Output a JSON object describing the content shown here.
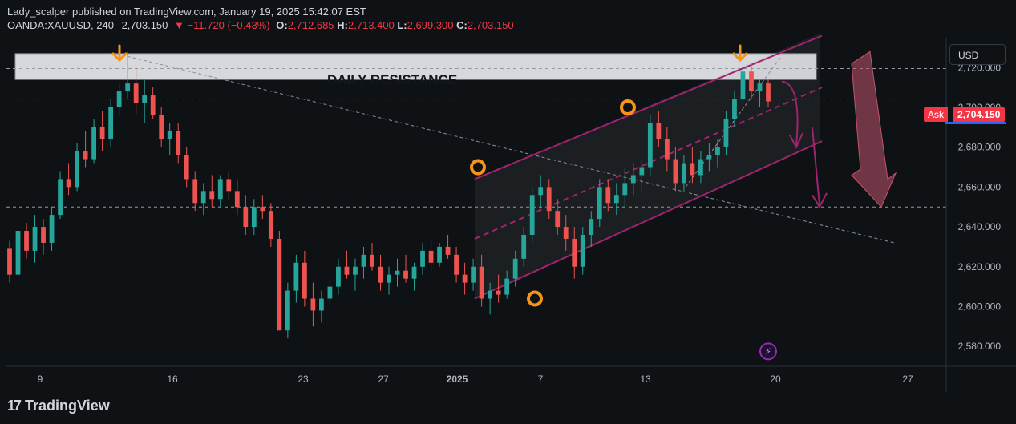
{
  "header": {
    "publisher_line": "Lady_scalper published on TradingView.com, January 19, 2025 15:42:07 EST",
    "symbol": "OANDA:XAUUSD, 240",
    "last": "2,703.150",
    "change": "▼ −11.720 (−0.43%)",
    "o_label": "O:",
    "o_val": "2,712.685",
    "h_label": "H:",
    "h_val": "2,713.400",
    "l_label": "L:",
    "l_val": "2,699.300",
    "c_label": "C:",
    "c_val": "2,703.150"
  },
  "currency_button": "USD",
  "ask": {
    "label": "Ask",
    "price": "2,704.150"
  },
  "annotation": {
    "resistance_label": "DAILY RESISTANCE"
  },
  "footer": {
    "brand": "TradingView",
    "logo_mark": "17"
  },
  "colors": {
    "background": "#0f1215",
    "up": "#26a69a",
    "down": "#ef5350",
    "channel": "#a1236e",
    "marker": "#f7931a",
    "ask": "#f23645"
  },
  "chart_data": {
    "type": "candlestick",
    "title": "",
    "ylim": [
      2570,
      2735
    ],
    "y_ticks": [
      2580,
      2600,
      2620,
      2640,
      2660,
      2680,
      2700,
      2720
    ],
    "y_tick_labels": [
      "2,580.000",
      "2,600.000",
      "2,620.000",
      "2,640.000",
      "2,660.000",
      "2,680.000",
      "2,700.000",
      "2,720.000"
    ],
    "x_tick_labels": [
      "9",
      "16",
      "23",
      "27",
      "2025",
      "7",
      "13",
      "20",
      "27"
    ],
    "series": [
      {
        "values": [
          [
            2629,
            2633,
            2612,
            2616
          ],
          [
            2616,
            2640,
            2614,
            2638
          ],
          [
            2638,
            2642,
            2624,
            2628
          ],
          [
            2628,
            2646,
            2622,
            2640
          ],
          [
            2640,
            2644,
            2626,
            2632
          ],
          [
            2632,
            2650,
            2628,
            2646
          ],
          [
            2646,
            2668,
            2644,
            2664
          ],
          [
            2664,
            2672,
            2656,
            2660
          ],
          [
            2660,
            2682,
            2658,
            2678
          ],
          [
            2678,
            2688,
            2670,
            2674
          ],
          [
            2674,
            2694,
            2672,
            2690
          ],
          [
            2690,
            2698,
            2678,
            2684
          ],
          [
            2684,
            2704,
            2680,
            2700
          ],
          [
            2700,
            2712,
            2696,
            2708
          ],
          [
            2708,
            2728,
            2704,
            2712
          ],
          [
            2712,
            2720,
            2696,
            2702
          ],
          [
            2702,
            2714,
            2692,
            2706
          ],
          [
            2706,
            2710,
            2694,
            2696
          ],
          [
            2696,
            2700,
            2680,
            2684
          ],
          [
            2684,
            2692,
            2676,
            2688
          ],
          [
            2688,
            2692,
            2672,
            2676
          ],
          [
            2676,
            2680,
            2660,
            2664
          ],
          [
            2664,
            2668,
            2648,
            2652
          ],
          [
            2652,
            2662,
            2646,
            2658
          ],
          [
            2658,
            2666,
            2650,
            2654
          ],
          [
            2654,
            2666,
            2650,
            2664
          ],
          [
            2664,
            2668,
            2654,
            2658
          ],
          [
            2658,
            2664,
            2646,
            2650
          ],
          [
            2650,
            2656,
            2636,
            2640
          ],
          [
            2640,
            2654,
            2636,
            2650
          ],
          [
            2650,
            2656,
            2644,
            2648
          ],
          [
            2648,
            2652,
            2630,
            2634
          ],
          [
            2634,
            2638,
            2590,
            2588
          ],
          [
            2588,
            2612,
            2584,
            2608
          ],
          [
            2608,
            2626,
            2602,
            2622
          ],
          [
            2622,
            2628,
            2600,
            2604
          ],
          [
            2604,
            2612,
            2590,
            2598
          ],
          [
            2598,
            2608,
            2592,
            2604
          ],
          [
            2604,
            2614,
            2600,
            2610
          ],
          [
            2610,
            2624,
            2606,
            2620
          ],
          [
            2620,
            2628,
            2614,
            2616
          ],
          [
            2616,
            2624,
            2608,
            2620
          ],
          [
            2620,
            2630,
            2614,
            2626
          ],
          [
            2626,
            2632,
            2618,
            2620
          ],
          [
            2620,
            2626,
            2608,
            2612
          ],
          [
            2612,
            2620,
            2606,
            2616
          ],
          [
            2616,
            2624,
            2610,
            2618
          ],
          [
            2618,
            2626,
            2612,
            2614
          ],
          [
            2614,
            2622,
            2608,
            2620
          ],
          [
            2620,
            2632,
            2616,
            2628
          ],
          [
            2628,
            2634,
            2618,
            2622
          ],
          [
            2622,
            2632,
            2620,
            2630
          ],
          [
            2630,
            2636,
            2624,
            2626
          ],
          [
            2626,
            2630,
            2612,
            2616
          ],
          [
            2616,
            2622,
            2606,
            2612
          ],
          [
            2612,
            2624,
            2608,
            2620
          ],
          [
            2620,
            2626,
            2600,
            2604
          ],
          [
            2604,
            2612,
            2596,
            2608
          ],
          [
            2608,
            2616,
            2602,
            2606
          ],
          [
            2606,
            2618,
            2604,
            2614
          ],
          [
            2614,
            2628,
            2610,
            2624
          ],
          [
            2624,
            2640,
            2620,
            2636
          ],
          [
            2636,
            2660,
            2632,
            2656
          ],
          [
            2656,
            2666,
            2650,
            2660
          ],
          [
            2660,
            2664,
            2644,
            2648
          ],
          [
            2648,
            2654,
            2636,
            2640
          ],
          [
            2640,
            2646,
            2628,
            2634
          ],
          [
            2634,
            2640,
            2614,
            2620
          ],
          [
            2620,
            2640,
            2616,
            2636
          ],
          [
            2636,
            2648,
            2630,
            2644
          ],
          [
            2644,
            2664,
            2640,
            2660
          ],
          [
            2660,
            2664,
            2648,
            2652
          ],
          [
            2652,
            2662,
            2646,
            2656
          ],
          [
            2656,
            2670,
            2650,
            2662
          ],
          [
            2662,
            2672,
            2656,
            2666
          ],
          [
            2666,
            2674,
            2658,
            2670
          ],
          [
            2670,
            2696,
            2666,
            2692
          ],
          [
            2692,
            2698,
            2680,
            2684
          ],
          [
            2684,
            2690,
            2668,
            2674
          ],
          [
            2674,
            2680,
            2658,
            2662
          ],
          [
            2662,
            2676,
            2658,
            2672
          ],
          [
            2672,
            2680,
            2662,
            2666
          ],
          [
            2666,
            2678,
            2662,
            2674
          ],
          [
            2674,
            2682,
            2668,
            2676
          ],
          [
            2676,
            2684,
            2670,
            2680
          ],
          [
            2680,
            2698,
            2676,
            2694
          ],
          [
            2694,
            2708,
            2690,
            2704
          ],
          [
            2704,
            2726,
            2700,
            2718
          ],
          [
            2718,
            2722,
            2704,
            2708
          ],
          [
            2708,
            2714,
            2700,
            2712
          ],
          [
            2712,
            2714,
            2700,
            2703
          ]
        ]
      }
    ],
    "annotations": [
      {
        "type": "zone",
        "label": "DAILY RESISTANCE",
        "y_range": [
          2714,
          2727
        ]
      },
      {
        "type": "horizontal",
        "y": 2719.5,
        "style": "dashed"
      },
      {
        "type": "horizontal",
        "y": 2650,
        "style": "dashed"
      },
      {
        "type": "channel",
        "color": "#a1236e"
      },
      {
        "type": "forecast_arrow",
        "direction": "down"
      }
    ]
  }
}
